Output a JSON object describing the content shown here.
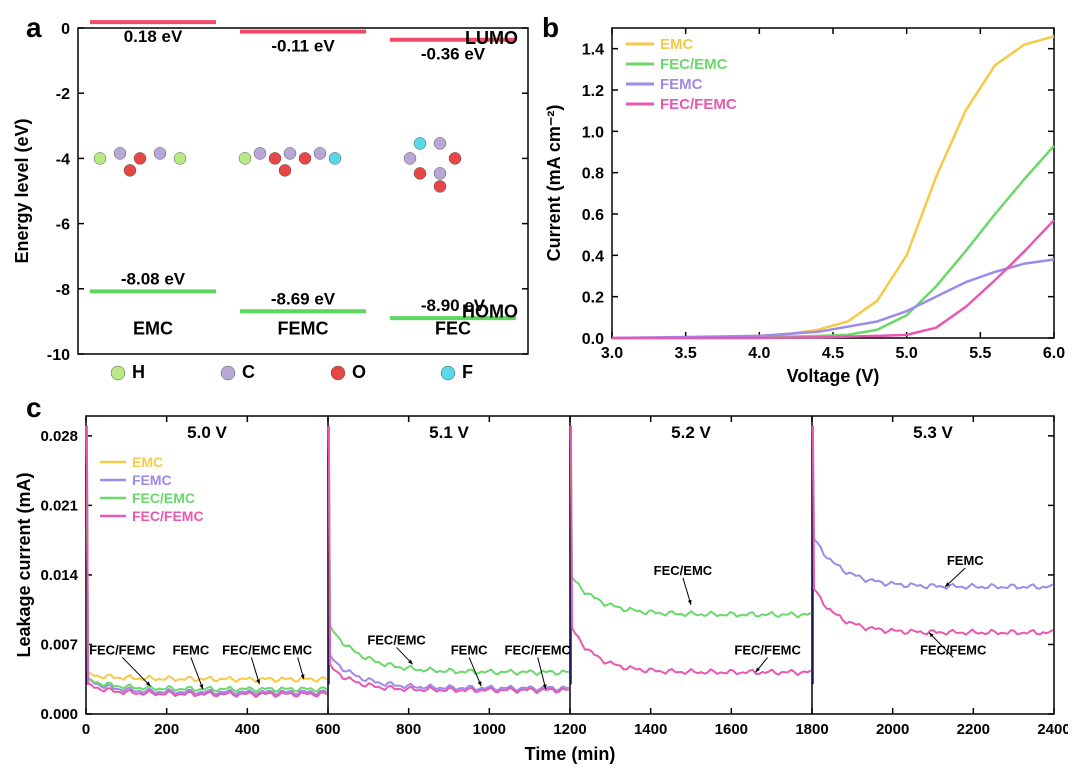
{
  "panel_a": {
    "label": "a",
    "label_fontsize": 28,
    "ylabel": "Energy level (eV)",
    "label_fontsize_axis": 18,
    "ylim": [
      -10,
      0
    ],
    "ytick_step": 2,
    "molecules": [
      "EMC",
      "FEMC",
      "FEC"
    ],
    "lumo_values": [
      "0.18 eV",
      "-0.11 eV",
      "-0.36 eV"
    ],
    "homo_values": [
      "-8.08 eV",
      "-8.69 eV",
      "-8.90 eV"
    ],
    "lumo_y": [
      0.18,
      -0.11,
      -0.36
    ],
    "homo_y": [
      -8.08,
      -8.69,
      -8.9
    ],
    "lumo_color": "#f04a6a",
    "homo_color": "#5cd65c",
    "lumo_text": "LUMO",
    "homo_text": "HOMO",
    "atom_legend": [
      "H",
      "C",
      "O",
      "F"
    ],
    "atom_colors": [
      "#b8e986",
      "#b8a8d8",
      "#e84545",
      "#58d8e8"
    ],
    "tick_fontsize": 16,
    "mol_fontsize": 18,
    "val_fontsize": 17
  },
  "panel_b": {
    "label": "b",
    "label_fontsize": 28,
    "xlabel": "Voltage (V)",
    "ylabel": "Current (mA cm⁻²)",
    "label_fontsize_axis": 18,
    "xlim": [
      3.0,
      6.0
    ],
    "ylim": [
      0.0,
      1.5
    ],
    "xtick_step": 0.5,
    "ytick_step": 0.2,
    "tick_fontsize": 16,
    "series": [
      {
        "name": "EMC",
        "color": "#f7c948",
        "x": [
          3.0,
          3.5,
          4.0,
          4.2,
          4.4,
          4.6,
          4.8,
          5.0,
          5.2,
          5.4,
          5.6,
          5.8,
          6.0
        ],
        "y": [
          0,
          0,
          0.01,
          0.02,
          0.04,
          0.08,
          0.18,
          0.4,
          0.78,
          1.1,
          1.32,
          1.42,
          1.46
        ]
      },
      {
        "name": "FEC/EMC",
        "color": "#6bd86b",
        "x": [
          3.0,
          3.5,
          4.0,
          4.3,
          4.6,
          4.8,
          5.0,
          5.2,
          5.4,
          5.6,
          5.8,
          6.0
        ],
        "y": [
          0,
          0,
          0.005,
          0.008,
          0.015,
          0.04,
          0.11,
          0.25,
          0.42,
          0.6,
          0.77,
          0.93
        ]
      },
      {
        "name": "FEMC",
        "color": "#9e8ae8",
        "x": [
          3.0,
          3.5,
          4.0,
          4.4,
          4.8,
          5.0,
          5.2,
          5.4,
          5.6,
          5.8,
          6.0
        ],
        "y": [
          0,
          0.005,
          0.01,
          0.03,
          0.08,
          0.13,
          0.2,
          0.27,
          0.32,
          0.36,
          0.38
        ]
      },
      {
        "name": "FEC/FEMC",
        "color": "#e858b0",
        "x": [
          3.0,
          3.5,
          4.0,
          4.5,
          4.8,
          5.0,
          5.2,
          5.4,
          5.6,
          5.8,
          6.0
        ],
        "y": [
          0,
          0,
          0,
          0.005,
          0.01,
          0.015,
          0.05,
          0.15,
          0.28,
          0.42,
          0.57
        ]
      }
    ],
    "legend_fontsize": 15,
    "line_width": 2.5
  },
  "panel_c": {
    "label": "c",
    "label_fontsize": 28,
    "xlabel": "Time (min)",
    "ylabel": "Leakage current (mA)",
    "label_fontsize_axis": 18,
    "xlim": [
      0,
      2400
    ],
    "ylim": [
      0.0,
      0.03
    ],
    "xtick_step": 200,
    "yticks": [
      0.0,
      0.007,
      0.014,
      0.021,
      0.028
    ],
    "tick_fontsize": 15,
    "subpanel_titles": [
      "5.0 V",
      "5.1 V",
      "5.2 V",
      "5.3 V"
    ],
    "subpanel_xstarts": [
      0,
      600,
      1200,
      1800
    ],
    "line_width": 2,
    "series": [
      {
        "name": "EMC",
        "color": "#f7c948"
      },
      {
        "name": "FEMC",
        "color": "#9e8ae8"
      },
      {
        "name": "FEC/EMC",
        "color": "#6bd86b"
      },
      {
        "name": "FEC/FEMC",
        "color": "#e858b0"
      }
    ],
    "legend_fontsize": 14,
    "panel_data": [
      {
        "annotations": [
          {
            "text": "FEC/FEMC",
            "x": 90,
            "y": 0.006,
            "ax": 160,
            "ay": 0.0028
          },
          {
            "text": "FEMC",
            "x": 260,
            "y": 0.006,
            "ax": 290,
            "ay": 0.0025
          },
          {
            "text": "FEC/EMC",
            "x": 410,
            "y": 0.006,
            "ax": 430,
            "ay": 0.003
          },
          {
            "text": "EMC",
            "x": 525,
            "y": 0.006,
            "ax": 540,
            "ay": 0.0035
          }
        ],
        "curves": {
          "EMC": {
            "start": 0.004,
            "end": 0.0035,
            "decay": 80
          },
          "FEMC": {
            "start": 0.0035,
            "end": 0.0022,
            "decay": 60
          },
          "FEC/EMC": {
            "start": 0.0035,
            "end": 0.0025,
            "decay": 70
          },
          "FEC/FEMC": {
            "start": 0.003,
            "end": 0.002,
            "decay": 60
          }
        }
      },
      {
        "annotations": [
          {
            "text": "FEC/EMC",
            "x": 770,
            "y": 0.007,
            "ax": 810,
            "ay": 0.005
          },
          {
            "text": "FEMC",
            "x": 950,
            "y": 0.006,
            "ax": 980,
            "ay": 0.0028
          },
          {
            "text": "FEC/FEMC",
            "x": 1120,
            "y": 0.006,
            "ax": 1140,
            "ay": 0.0025
          }
        ],
        "curves": {
          "FEMC": {
            "start": 0.006,
            "end": 0.0026,
            "decay": 70
          },
          "FEC/EMC": {
            "start": 0.009,
            "end": 0.0042,
            "decay": 80
          },
          "FEC/FEMC": {
            "start": 0.005,
            "end": 0.0024,
            "decay": 60
          }
        }
      },
      {
        "annotations": [
          {
            "text": "FEC/EMC",
            "x": 1480,
            "y": 0.014,
            "ax": 1500,
            "ay": 0.011
          },
          {
            "text": "FEC/FEMC",
            "x": 1690,
            "y": 0.006,
            "ax": 1660,
            "ay": 0.0042
          }
        ],
        "curves": {
          "FEC/EMC": {
            "start": 0.014,
            "end": 0.01,
            "decay": 70
          },
          "FEC/FEMC": {
            "start": 0.009,
            "end": 0.0042,
            "decay": 60
          }
        }
      },
      {
        "annotations": [
          {
            "text": "FEMC",
            "x": 2180,
            "y": 0.015,
            "ax": 2130,
            "ay": 0.0128
          },
          {
            "text": "FEC/FEMC",
            "x": 2150,
            "y": 0.006,
            "ax": 2090,
            "ay": 0.0082
          }
        ],
        "curves": {
          "FEMC": {
            "start": 0.018,
            "end": 0.0128,
            "decay": 70
          },
          "FEC/FEMC": {
            "start": 0.013,
            "end": 0.0082,
            "decay": 60
          }
        }
      }
    ]
  },
  "colors": {
    "axis": "#000000",
    "background": "#ffffff"
  }
}
